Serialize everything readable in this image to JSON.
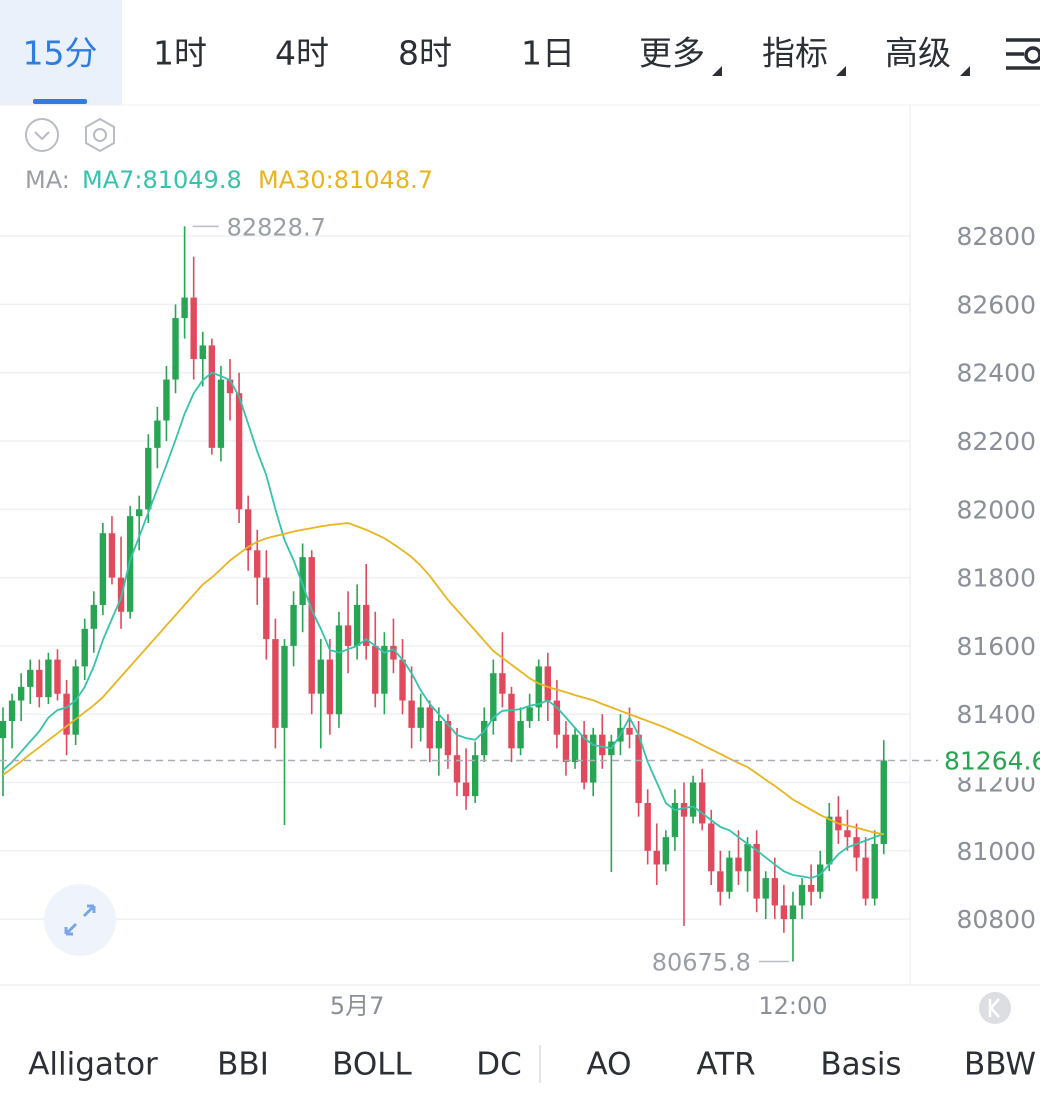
{
  "tabs": [
    "15分",
    "1时",
    "4时",
    "8时",
    "1日",
    "更多",
    "指标",
    "高级"
  ],
  "indicators": [
    "Alligator",
    "BBI",
    "BOLL",
    "DC",
    "AO",
    "ATR",
    "Basis",
    "BBW"
  ],
  "chart_data": {
    "type": "candlestick",
    "ma_label": "MA:",
    "categories": [
      null,
      null,
      null,
      null,
      null,
      null,
      null,
      null,
      null,
      null,
      null,
      null,
      null,
      null,
      null,
      null,
      null,
      null,
      null,
      null,
      null,
      null,
      null,
      null,
      null,
      null,
      null,
      null,
      null,
      null,
      null,
      null,
      null,
      null,
      null,
      null,
      null,
      null,
      null,
      "5月7",
      null,
      null,
      null,
      null,
      null,
      null,
      null,
      null,
      null,
      null,
      null,
      null,
      null,
      null,
      null,
      null,
      null,
      null,
      null,
      null,
      null,
      null,
      null,
      null,
      null,
      null,
      null,
      null,
      null,
      null,
      null,
      null,
      null,
      null,
      null,
      null,
      null,
      null,
      null,
      null,
      null,
      null,
      null,
      null,
      null,
      null,
      null,
      "12:00",
      null,
      null,
      null,
      null,
      null,
      null,
      null,
      null,
      null,
      null
    ],
    "open": [
      81330,
      81380,
      81440,
      81480,
      81530,
      81450,
      81560,
      81460,
      81340,
      81540,
      81650,
      81720,
      81930,
      81800,
      81700,
      81980,
      82000,
      82180,
      82260,
      82380,
      82560,
      82620,
      82440,
      82480,
      82180,
      82380,
      82340,
      82000,
      81880,
      81800,
      81620,
      81360,
      81600,
      81720,
      81860,
      81460,
      81560,
      81400,
      81660,
      81600,
      81720,
      81600,
      81460,
      81600,
      81560,
      81440,
      81360,
      81420,
      81300,
      81380,
      81280,
      81200,
      81160,
      81280,
      81380,
      81520,
      81460,
      81300,
      81380,
      81420,
      81540,
      81440,
      81340,
      81260,
      81340,
      81200,
      81340,
      81280,
      81320,
      81360,
      81340,
      81140,
      81000,
      80960,
      81040,
      81140,
      81100,
      81200,
      81080,
      80940,
      80880,
      80980,
      80940,
      81020,
      80860,
      80920,
      80840,
      80800,
      80840,
      80900,
      80880,
      80960,
      81100,
      81060,
      81040,
      80980,
      80860,
      81020
    ],
    "high": [
      81420,
      81460,
      81520,
      81560,
      81560,
      81580,
      81590,
      81500,
      81560,
      81680,
      81760,
      81960,
      81980,
      81920,
      82010,
      82040,
      82220,
      82300,
      82420,
      82600,
      82828.7,
      82740,
      82520,
      82500,
      82420,
      82440,
      82400,
      82040,
      81940,
      81880,
      81680,
      81620,
      81760,
      81900,
      81880,
      81620,
      81620,
      81700,
      81760,
      81780,
      81840,
      81700,
      81640,
      81680,
      81620,
      81540,
      81460,
      81440,
      81420,
      81400,
      81360,
      81300,
      81320,
      81420,
      81560,
      81640,
      81480,
      81420,
      81460,
      81560,
      81580,
      81500,
      81380,
      81360,
      81380,
      81360,
      81400,
      81340,
      81400,
      81420,
      81380,
      81180,
      81080,
      81060,
      81180,
      81200,
      81220,
      81240,
      81120,
      81000,
      81000,
      81060,
      81040,
      81060,
      80940,
      80980,
      80900,
      80880,
      80920,
      80960,
      81000,
      81140,
      81160,
      81120,
      81080,
      81040,
      81060,
      81324
    ],
    "low": [
      81160,
      81300,
      81380,
      81430,
      81420,
      81430,
      81440,
      81280,
      81310,
      81500,
      81580,
      81690,
      81780,
      81650,
      81680,
      81880,
      81960,
      82120,
      82200,
      82340,
      82500,
      82380,
      82360,
      82160,
      82140,
      82260,
      81960,
      81820,
      81720,
      81560,
      81300,
      81075,
      81540,
      81640,
      81400,
      81300,
      81340,
      81360,
      81520,
      81560,
      81560,
      81420,
      81400,
      81520,
      81400,
      81300,
      81320,
      81260,
      81220,
      81240,
      81160,
      81120,
      81140,
      81260,
      81340,
      81420,
      81260,
      81280,
      81360,
      81380,
      81380,
      81300,
      81220,
      81240,
      81180,
      81160,
      81240,
      80938,
      81280,
      81300,
      81100,
      80960,
      80900,
      80940,
      81000,
      80780,
      81080,
      81060,
      80900,
      80840,
      80860,
      80900,
      80880,
      80820,
      80800,
      80800,
      80760,
      80675.8,
      80800,
      80840,
      80860,
      80940,
      81020,
      81000,
      80940,
      80840,
      80840,
      80990
    ],
    "close": [
      81380,
      81440,
      81480,
      81530,
      81450,
      81560,
      81460,
      81340,
      81540,
      81650,
      81720,
      81930,
      81800,
      81700,
      81980,
      82000,
      82180,
      82260,
      82380,
      82560,
      82620,
      82440,
      82480,
      82180,
      82380,
      82340,
      82000,
      81880,
      81800,
      81620,
      81360,
      81600,
      81720,
      81860,
      81460,
      81560,
      81400,
      81660,
      81600,
      81720,
      81600,
      81460,
      81600,
      81560,
      81440,
      81360,
      81420,
      81300,
      81380,
      81280,
      81200,
      81160,
      81280,
      81380,
      81520,
      81460,
      81300,
      81380,
      81420,
      81540,
      81440,
      81340,
      81260,
      81340,
      81200,
      81340,
      81280,
      81320,
      81360,
      81340,
      81140,
      81000,
      80960,
      81040,
      81140,
      81100,
      81200,
      81080,
      80940,
      80880,
      80980,
      80940,
      81020,
      80860,
      80920,
      80840,
      80800,
      80840,
      80900,
      80880,
      80960,
      81100,
      81060,
      81040,
      80980,
      80860,
      81020,
      81264.6
    ],
    "up_color": "#27a552",
    "down_color": "#e04a5c",
    "series": [
      {
        "name": "MA7:81049.8",
        "color": "#35c4ab",
        "values": [
          81236,
          81260,
          81290,
          81320,
          81350,
          81390,
          81412,
          81420,
          81440,
          81480,
          81540,
          81617,
          81680,
          81740,
          81851,
          81920,
          81990,
          82060,
          82130,
          82203,
          82280,
          82340,
          82378,
          82400,
          82390,
          82378,
          82330,
          82250,
          82170,
          82100,
          82000,
          81910,
          81851,
          81780,
          81705,
          81650,
          81588,
          81580,
          81590,
          81600,
          81620,
          81600,
          81580,
          81590,
          81560,
          81520,
          81470,
          81430,
          81400,
          81370,
          81339,
          81330,
          81325,
          81350,
          81390,
          81410,
          81412,
          81415,
          81425,
          81430,
          81440,
          81420,
          81390,
          81360,
          81330,
          81310,
          81305,
          81300,
          81340,
          81390,
          81340,
          81260,
          81200,
          81140,
          81119,
          81125,
          81130,
          81110,
          81090,
          81070,
          81060,
          81040,
          81020,
          81002,
          80980,
          80960,
          80940,
          80929,
          80925,
          80920,
          80930,
          80960,
          80990,
          81010,
          81020,
          81030,
          81040,
          81049.8
        ]
      },
      {
        "name": "MA30:81048.7",
        "color": "#eab41e",
        "values": [
          81222,
          81242,
          81262,
          81283,
          81303,
          81324,
          81344,
          81365,
          81385,
          81406,
          81426,
          81450,
          81480,
          81510,
          81540,
          81570,
          81600,
          81630,
          81660,
          81690,
          81720,
          81750,
          81780,
          81800,
          81825,
          81850,
          81870,
          81890,
          81905,
          81915,
          81922,
          81928,
          81935,
          81940,
          81945,
          81950,
          81954,
          81957,
          81960,
          81950,
          81940,
          81928,
          81915,
          81898,
          81880,
          81860,
          81835,
          81805,
          81770,
          81735,
          81705,
          81675,
          81645,
          81615,
          81585,
          81565,
          81545,
          81525,
          81505,
          81490,
          81480,
          81472,
          81464,
          81456,
          81448,
          81441,
          81430,
          81420,
          81410,
          81400,
          81390,
          81380,
          81370,
          81360,
          81348,
          81336,
          81324,
          81310,
          81297,
          81284,
          81270,
          81257,
          81245,
          81227,
          81208,
          81190,
          81170,
          81150,
          81135,
          81120,
          81105,
          81092,
          81080,
          81074,
          81068,
          81060,
          81053,
          81048.7
        ]
      }
    ],
    "ylim": [
      80607,
      83184
    ],
    "yticks": [
      80800,
      81000,
      81200,
      81400,
      81600,
      81800,
      82000,
      82200,
      82400,
      82600,
      82800
    ],
    "grid": true
  }
}
